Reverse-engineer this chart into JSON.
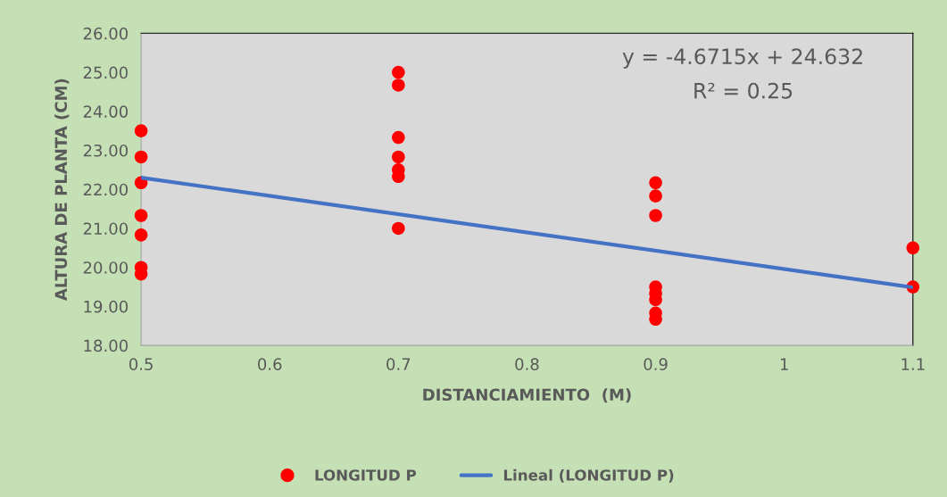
{
  "chart_data": {
    "type": "scatter",
    "xlabel": "DISTANCIAMIENTO  (M)",
    "ylabel": "ALTURA DE PLANTA (CM)",
    "xlim": [
      0.5,
      1.1
    ],
    "xticks": [
      0.5,
      0.6,
      0.7,
      0.8,
      0.9,
      1,
      1.1
    ],
    "ylim": [
      18,
      26
    ],
    "yticks": [
      {
        "value": 18,
        "label": "18.00"
      },
      {
        "value": 19,
        "label": "19.00"
      },
      {
        "value": 20,
        "label": "20.00"
      },
      {
        "value": 21,
        "label": "21.00"
      },
      {
        "value": 22,
        "label": "22.00"
      },
      {
        "value": 23,
        "label": "23.00"
      },
      {
        "value": 24,
        "label": "24.00"
      },
      {
        "value": 25,
        "label": "25.00"
      },
      {
        "value": 26,
        "label": "26.00"
      }
    ],
    "grid": false,
    "legend": "bottom",
    "annotations": [
      "y = -4.6715x + 24.632",
      "R² = 0.25"
    ],
    "series": [
      {
        "name": "LONGITUD P",
        "marker": "circle",
        "color": "#ff0000",
        "x": [
          0.5,
          0.5,
          0.5,
          0.5,
          0.5,
          0.5,
          0.5,
          0.7,
          0.7,
          0.7,
          0.7,
          0.7,
          0.7,
          0.7,
          0.9,
          0.9,
          0.9,
          0.9,
          0.9,
          0.9,
          0.9,
          0.9,
          1.1,
          1.1
        ],
        "values": [
          23.5,
          22.83,
          22.17,
          21.33,
          20.83,
          20.0,
          19.83,
          25.0,
          24.67,
          23.33,
          22.83,
          22.5,
          22.33,
          21.0,
          22.17,
          21.83,
          21.33,
          19.5,
          19.33,
          19.17,
          18.83,
          18.67,
          20.5,
          19.5
        ]
      },
      {
        "name": "Lineal (LONGITUD P)",
        "type": "line",
        "color": "#4472c4",
        "x": [
          0.5,
          1.1
        ],
        "values": [
          22.3,
          19.49
        ]
      }
    ]
  }
}
